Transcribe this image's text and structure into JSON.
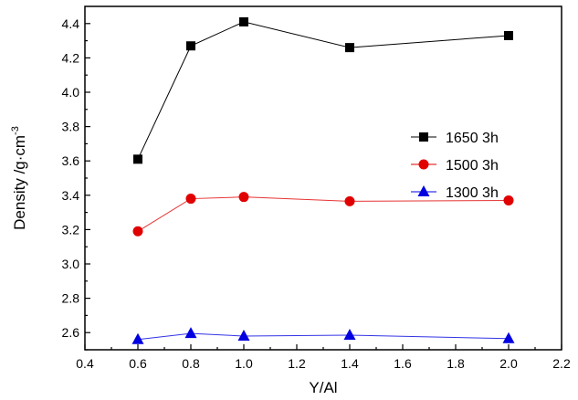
{
  "chart_data": {
    "type": "line",
    "title": "",
    "xlabel": "Y/Al",
    "ylabel": "Density /g·cm",
    "ylabel_sup": "-3",
    "xlim": [
      0.4,
      2.2
    ],
    "ylim": [
      2.5,
      4.5
    ],
    "xticks": [
      "0.4",
      "0.6",
      "0.8",
      "1.0",
      "1.2",
      "1.4",
      "1.6",
      "1.8",
      "2.0",
      "2.2"
    ],
    "yticks": [
      "2.6",
      "2.8",
      "3.0",
      "3.2",
      "3.4",
      "3.6",
      "3.8",
      "4.0",
      "4.2",
      "4.4"
    ],
    "grid": false,
    "legend_position": "center-right",
    "x": [
      0.6,
      0.8,
      1.0,
      1.4,
      2.0
    ],
    "series": [
      {
        "name": "1650 3h",
        "values": [
          3.61,
          4.27,
          4.41,
          4.26,
          4.33
        ],
        "color": "#000000",
        "marker": "square"
      },
      {
        "name": "1500 3h",
        "values": [
          3.19,
          3.38,
          3.39,
          3.365,
          3.37
        ],
        "color": "#e00000",
        "marker": "circle"
      },
      {
        "name": "1300 3h",
        "values": [
          2.56,
          2.595,
          2.58,
          2.585,
          2.565
        ],
        "color": "#0000e0",
        "marker": "triangle"
      }
    ]
  }
}
